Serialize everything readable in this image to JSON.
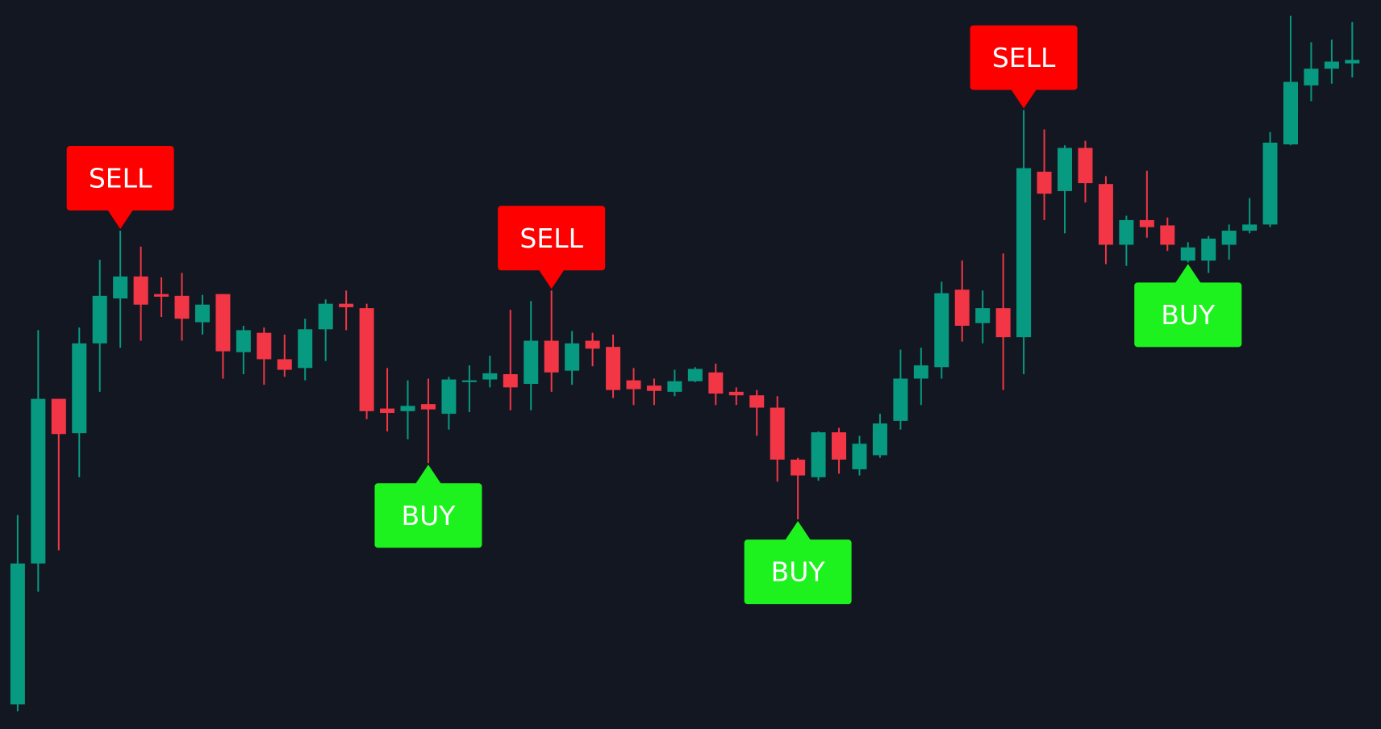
{
  "chart_data": {
    "type": "candlestick",
    "background": "#131722",
    "up_color": "#089981",
    "down_color": "#f23645",
    "xlim": [
      -0.86,
      66.4
    ],
    "ylim": [
      0,
      828
    ],
    "x": [
      0,
      1,
      2,
      3,
      4,
      5,
      6,
      7,
      8,
      9,
      10,
      11,
      12,
      13,
      14,
      15,
      16,
      17,
      18,
      19,
      20,
      21,
      22,
      23,
      24,
      25,
      26,
      27,
      28,
      29,
      30,
      31,
      32,
      33,
      34,
      35,
      36,
      37,
      38,
      39,
      40,
      41,
      42,
      43,
      44,
      45,
      46,
      47,
      48,
      49,
      50,
      51,
      52,
      53,
      54,
      55,
      56,
      57,
      58,
      59,
      60,
      61,
      62,
      63,
      64,
      65
    ],
    "open": [
      28,
      188,
      375,
      336,
      438,
      489,
      514,
      494,
      492,
      462,
      494,
      428,
      450,
      420,
      410,
      454,
      483,
      478,
      364,
      361,
      369,
      358,
      394,
      397,
      403,
      392,
      441,
      407,
      441,
      434,
      396,
      390,
      383,
      395,
      405,
      383,
      379,
      365,
      306,
      286,
      337,
      295,
      311,
      350,
      398,
      411,
      499,
      461,
      478,
      445,
      633,
      611,
      660,
      619,
      550,
      578,
      572,
      532,
      532,
      550,
      566,
      573,
      664,
      731,
      750,
      756
    ],
    "high": [
      243,
      453,
      375,
      456,
      533,
      566,
      548,
      513,
      518,
      493,
      494,
      458,
      456,
      448,
      466,
      488,
      498,
      483,
      410,
      396,
      398,
      400,
      413,
      424,
      476,
      486,
      498,
      452,
      450,
      448,
      410,
      398,
      408,
      411,
      415,
      388,
      385,
      378,
      308,
      338,
      342,
      333,
      358,
      431,
      433,
      508,
      532,
      498,
      540,
      703,
      681,
      663,
      668,
      628,
      583,
      634,
      581,
      553,
      560,
      573,
      603,
      678,
      810,
      780,
      783,
      803
    ],
    "low": [
      20,
      156,
      203,
      286,
      383,
      433,
      441,
      468,
      441,
      448,
      398,
      403,
      391,
      400,
      396,
      418,
      453,
      352,
      338,
      329,
      302,
      340,
      360,
      388,
      362,
      362,
      383,
      391,
      412,
      376,
      368,
      368,
      378,
      394,
      368,
      368,
      333,
      281,
      238,
      282,
      290,
      288,
      308,
      340,
      368,
      398,
      440,
      438,
      385,
      403,
      578,
      563,
      598,
      528,
      526,
      558,
      543,
      530,
      518,
      533,
      563,
      570,
      663,
      713,
      733,
      740
    ],
    "close": [
      188,
      375,
      335,
      438,
      492,
      514,
      482,
      491,
      466,
      482,
      429,
      453,
      420,
      408,
      454,
      483,
      479,
      361,
      359,
      367,
      363,
      397,
      396,
      404,
      388,
      441,
      405,
      438,
      432,
      385,
      386,
      384,
      395,
      409,
      381,
      379,
      365,
      306,
      288,
      337,
      306,
      324,
      347,
      398,
      413,
      495,
      458,
      478,
      445,
      637,
      608,
      660,
      620,
      550,
      578,
      570,
      550,
      547,
      557,
      566,
      573,
      666,
      735,
      750,
      758,
      760
    ],
    "signals": [
      {
        "x": 5,
        "label": "SELL",
        "color": "#ff0000"
      },
      {
        "x": 20,
        "label": "BUY",
        "color": "#1ef21e"
      },
      {
        "x": 26,
        "label": "SELL",
        "color": "#ff0000"
      },
      {
        "x": 38,
        "label": "BUY",
        "color": "#1ef21e"
      },
      {
        "x": 49,
        "label": "SELL",
        "color": "#ff0000"
      },
      {
        "x": 57,
        "label": "BUY",
        "color": "#1ef21e"
      }
    ]
  }
}
